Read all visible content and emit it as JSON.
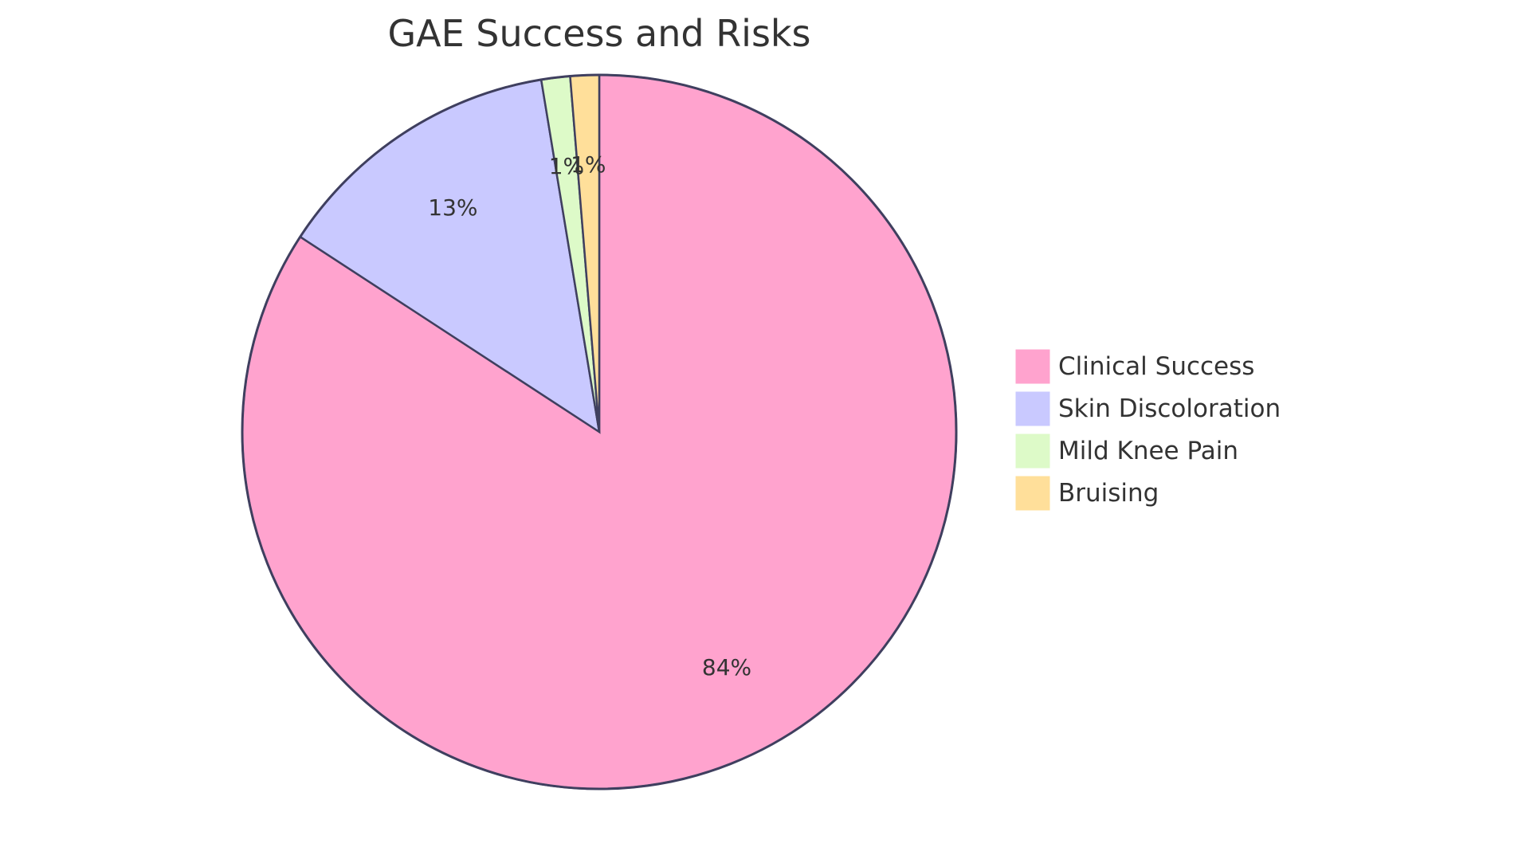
{
  "chart_data": {
    "type": "pie",
    "title": "GAE Success and Risks",
    "slices": [
      {
        "label": "Clinical Success",
        "value": 84.2,
        "display": "84%",
        "color": "#ffa3ce"
      },
      {
        "label": "Skin Discoloration",
        "value": 13.2,
        "display": "13%",
        "color": "#c9c9ff"
      },
      {
        "label": "Mild Knee Pain",
        "value": 1.3,
        "display": "1%",
        "color": "#ddfac8"
      },
      {
        "label": "Bruising",
        "value": 1.3,
        "display": "1%",
        "color": "#ffdf9a"
      }
    ],
    "legend_position": "right"
  }
}
